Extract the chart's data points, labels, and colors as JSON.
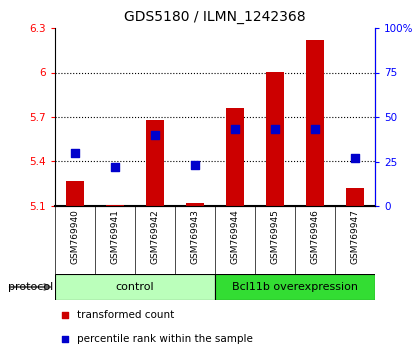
{
  "title": "GDS5180 / ILMN_1242368",
  "samples": [
    "GSM769940",
    "GSM769941",
    "GSM769942",
    "GSM769943",
    "GSM769944",
    "GSM769945",
    "GSM769946",
    "GSM769947"
  ],
  "transformed_count": [
    5.27,
    5.11,
    5.68,
    5.12,
    5.76,
    6.0,
    6.22,
    5.22
  ],
  "percentile_rank": [
    30,
    22,
    40,
    23,
    43,
    43,
    43,
    27
  ],
  "bar_bottom": 5.1,
  "ylim_left": [
    5.1,
    6.3
  ],
  "ylim_right": [
    0,
    100
  ],
  "yticks_left": [
    5.1,
    5.4,
    5.7,
    6.0,
    6.3
  ],
  "ytick_labels_left": [
    "5.1",
    "5.4",
    "5.7",
    "6",
    "6.3"
  ],
  "yticks_right": [
    0,
    25,
    50,
    75,
    100
  ],
  "ytick_labels_right": [
    "0",
    "25",
    "50",
    "75",
    "100%"
  ],
  "bar_color": "#cc0000",
  "dot_color": "#0000cc",
  "groups": [
    {
      "label": "control",
      "indices": [
        0,
        3
      ],
      "color": "#bbffbb"
    },
    {
      "label": "Bcl11b overexpression",
      "indices": [
        4,
        7
      ],
      "color": "#33dd33"
    }
  ],
  "protocol_label": "protocol",
  "legend_items": [
    {
      "label": "transformed count",
      "color": "#cc0000"
    },
    {
      "label": "percentile rank within the sample",
      "color": "#0000cc"
    }
  ],
  "sample_box_color": "#cccccc",
  "bar_width": 0.45,
  "dot_size": 28,
  "title_fontsize": 10
}
